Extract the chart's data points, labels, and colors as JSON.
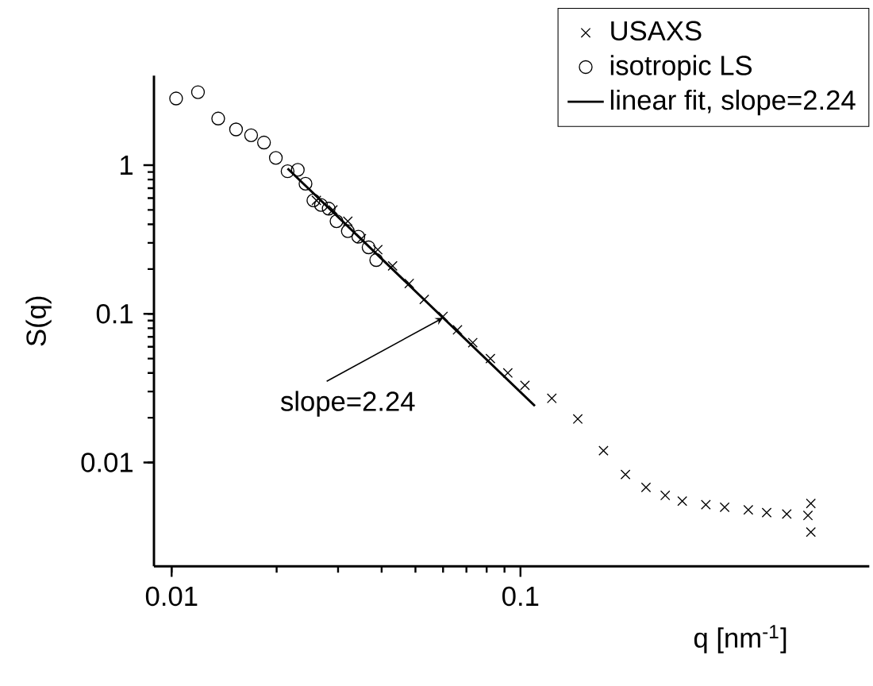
{
  "chart_data": {
    "type": "scatter",
    "xlabel": "q [nm$^{-1}$]",
    "ylabel": "S(q)",
    "log": "xy",
    "xlim": [
      0.0089,
      1.0
    ],
    "ylim": [
      0.002,
      4
    ],
    "xticks": [
      0.01,
      0.1
    ],
    "yticks": [
      0.01,
      0.1,
      1
    ],
    "legend": "top right",
    "annotations": [
      {
        "text": "slope=2.24",
        "x": 0.06,
        "y": 0.094
      }
    ],
    "series": [
      {
        "name": "USAXS",
        "marker": "cross",
        "color": "#000000",
        "x": [
          0.026,
          0.029,
          0.032,
          0.035,
          0.039,
          0.043,
          0.048,
          0.053,
          0.06,
          0.066,
          0.073,
          0.082,
          0.092,
          0.103,
          0.123,
          0.146,
          0.173,
          0.2,
          0.229,
          0.26,
          0.291,
          0.34,
          0.385,
          0.45,
          0.508,
          0.58,
          0.667,
          0.68,
          0.68
        ],
        "values": [
          0.58,
          0.5,
          0.42,
          0.32,
          0.27,
          0.21,
          0.16,
          0.125,
          0.096,
          0.078,
          0.064,
          0.05,
          0.04,
          0.033,
          0.027,
          0.0196,
          0.012,
          0.0083,
          0.0068,
          0.006,
          0.0055,
          0.0052,
          0.005,
          0.0048,
          0.0046,
          0.0045,
          0.0044,
          0.0053,
          0.0034
        ]
      },
      {
        "name": "isotropic LS",
        "marker": "circle",
        "color": "#000000",
        "x": [
          0.0103,
          0.0119,
          0.0136,
          0.0153,
          0.0169,
          0.0184,
          0.0199,
          0.0215,
          0.023,
          0.0242,
          0.0255,
          0.0268,
          0.0282,
          0.0297,
          0.032,
          0.0343,
          0.0367,
          0.0386
        ],
        "values": [
          2.81,
          3.1,
          2.06,
          1.74,
          1.59,
          1.42,
          1.12,
          0.91,
          0.93,
          0.75,
          0.58,
          0.54,
          0.51,
          0.42,
          0.36,
          0.33,
          0.28,
          0.23
        ]
      },
      {
        "name": "linear fit, slope=2.24",
        "type": "line",
        "marker": "none",
        "line_style": "solid",
        "color": "#000000",
        "x": [
          0.0215,
          0.11
        ],
        "values": [
          0.95,
          0.024
        ]
      }
    ]
  }
}
